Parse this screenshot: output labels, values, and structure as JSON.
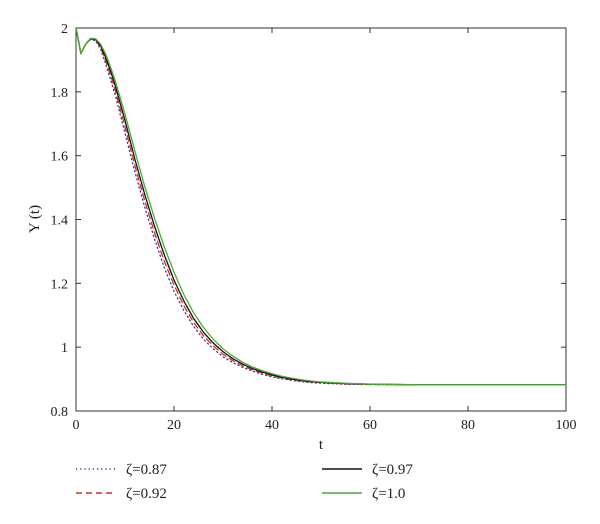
{
  "chart_data": {
    "type": "line",
    "title": "",
    "xlabel": "t",
    "ylabel": "Y (t)",
    "xlim": [
      0,
      100
    ],
    "ylim": [
      0.8,
      2.0
    ],
    "xticks": [
      "0",
      "20",
      "40",
      "60",
      "80",
      "100"
    ],
    "yticks": [
      "0.8",
      "1",
      "1.2",
      "1.4",
      "1.6",
      "1.8",
      "2"
    ],
    "grid": false,
    "legend_placement": "bottom",
    "x": [
      0,
      1,
      2,
      3,
      4,
      5,
      6,
      7,
      8,
      10,
      12,
      14,
      16,
      18,
      20,
      22,
      24,
      26,
      28,
      30,
      32,
      34,
      36,
      38,
      40,
      42,
      44,
      46,
      48,
      50,
      55,
      60,
      70,
      80,
      90,
      100
    ],
    "series": [
      {
        "name": "ζ=0.87",
        "color": "#3b3ba8",
        "dash": "dotted",
        "values": [
          2.0,
          1.92,
          1.95,
          1.965,
          1.96,
          1.935,
          1.89,
          1.84,
          1.79,
          1.67,
          1.55,
          1.44,
          1.34,
          1.25,
          1.175,
          1.115,
          1.065,
          1.025,
          0.995,
          0.97,
          0.952,
          0.937,
          0.925,
          0.915,
          0.907,
          0.901,
          0.896,
          0.892,
          0.889,
          0.887,
          0.884,
          0.883,
          0.882,
          0.882,
          0.882,
          0.882
        ]
      },
      {
        "name": "ζ=0.92",
        "color": "#d62f1e",
        "dash": "dashed",
        "values": [
          2.0,
          1.92,
          1.95,
          1.966,
          1.962,
          1.94,
          1.9,
          1.855,
          1.805,
          1.69,
          1.57,
          1.46,
          1.36,
          1.27,
          1.195,
          1.13,
          1.078,
          1.036,
          1.004,
          0.978,
          0.958,
          0.942,
          0.929,
          0.919,
          0.91,
          0.903,
          0.898,
          0.894,
          0.891,
          0.889,
          0.885,
          0.883,
          0.882,
          0.882,
          0.882,
          0.882
        ]
      },
      {
        "name": "ζ=0.97",
        "color": "#111111",
        "dash": "solid",
        "values": [
          2.0,
          1.92,
          1.95,
          1.967,
          1.964,
          1.945,
          1.91,
          1.868,
          1.82,
          1.71,
          1.59,
          1.48,
          1.38,
          1.29,
          1.21,
          1.145,
          1.09,
          1.047,
          1.013,
          0.986,
          0.964,
          0.947,
          0.933,
          0.922,
          0.913,
          0.906,
          0.9,
          0.896,
          0.892,
          0.89,
          0.886,
          0.884,
          0.882,
          0.882,
          0.882,
          0.882
        ]
      },
      {
        "name": "ζ=1.0",
        "color": "#4caa33",
        "dash": "solid",
        "values": [
          2.0,
          1.92,
          1.95,
          1.968,
          1.966,
          1.95,
          1.92,
          1.88,
          1.835,
          1.73,
          1.615,
          1.505,
          1.405,
          1.315,
          1.235,
          1.165,
          1.108,
          1.062,
          1.025,
          0.995,
          0.972,
          0.953,
          0.938,
          0.926,
          0.917,
          0.909,
          0.903,
          0.898,
          0.894,
          0.891,
          0.887,
          0.884,
          0.882,
          0.882,
          0.882,
          0.882
        ]
      }
    ]
  }
}
